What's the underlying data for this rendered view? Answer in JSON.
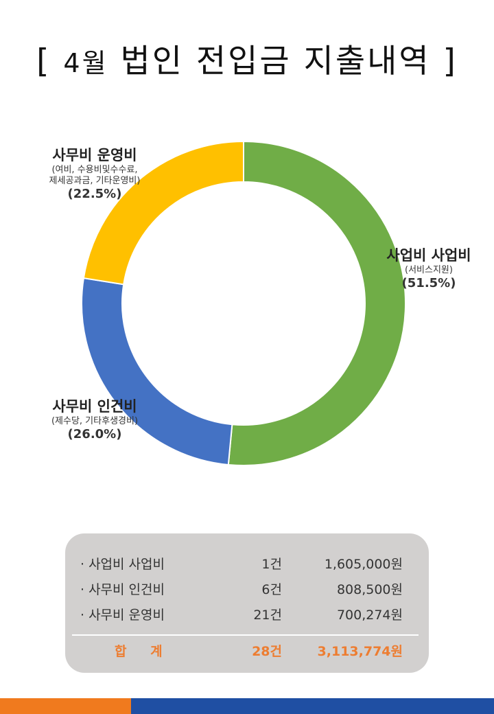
{
  "title": {
    "open_bracket": "[",
    "month": "4월",
    "text": "법인 전입금 지출내역",
    "close_bracket": "]"
  },
  "chart_data": {
    "type": "pie",
    "donut": true,
    "slices": [
      {
        "name": "사업비 사업비",
        "sub": "(서비스지원)",
        "pct_label": "(51.5%)",
        "value": 51.5,
        "color": "#70ad47"
      },
      {
        "name": "사무비 인건비",
        "sub": "(제수당, 기타후생경비)",
        "pct_label": "(26.0%)",
        "value": 26.0,
        "color": "#4472c4"
      },
      {
        "name": "사무비 운영비",
        "sub": "(여비, 수용비및수수료,\n제세공과금, 기타운영비)",
        "pct_label": "(22.5%)",
        "value": 22.5,
        "color": "#ffc000"
      }
    ]
  },
  "labels": {
    "business": {
      "main": "사업비 사업비",
      "sub": "(서비스지원)",
      "pct": "(51.5%)"
    },
    "personnel": {
      "main": "사무비 인건비",
      "sub": "(제수당, 기타후생경비)",
      "pct": "(26.0%)"
    },
    "operating": {
      "main": "사무비 운영비",
      "sub1": "(여비, 수용비및수수료,",
      "sub2": "제세공과금, 기타운영비)",
      "pct": "(22.5%)"
    }
  },
  "summary": {
    "rows": [
      {
        "name": "· 사업비 사업비",
        "count": "1건",
        "amount": "1,605,000원"
      },
      {
        "name": "· 사무비 인건비",
        "count": "6건",
        "amount": "808,500원"
      },
      {
        "name": "· 사무비 운영비",
        "count": "21건",
        "amount": "700,274원"
      }
    ],
    "total": {
      "name": "합 계",
      "count": "28건",
      "amount": "3,113,774원"
    }
  },
  "colors": {
    "accent_orange": "#f07a1e",
    "accent_blue": "#1f4fa3",
    "total_text": "#ed7d31",
    "summary_bg": "#d2d0cf"
  }
}
